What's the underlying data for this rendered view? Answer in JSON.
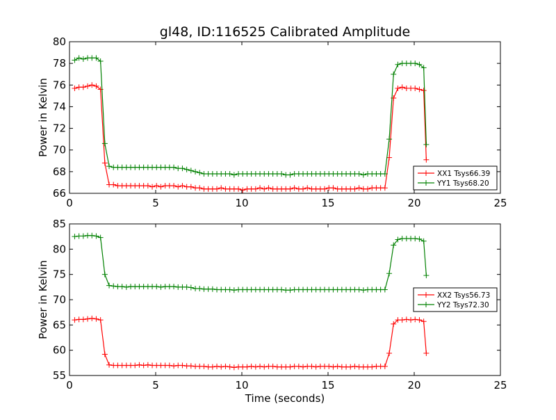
{
  "title": "gl48, ID:116525 Calibrated Amplitude",
  "colors": {
    "xx": "#ff0000",
    "yy": "#008000",
    "axes": "#000000",
    "background": "#ffffff"
  },
  "chart_data": [
    {
      "type": "line",
      "ylabel": "Power in Kelvin",
      "xlabel": "",
      "xlim": [
        0,
        25
      ],
      "ylim": [
        66,
        80
      ],
      "xticks": [
        0,
        5,
        10,
        15,
        20,
        25
      ],
      "yticks": [
        66,
        68,
        70,
        72,
        74,
        76,
        78,
        80
      ],
      "legend_position": "lower-right",
      "grid": false,
      "x": [
        0.3,
        0.55,
        0.8,
        1.05,
        1.3,
        1.55,
        1.8,
        2.05,
        2.3,
        2.55,
        2.8,
        3.05,
        3.3,
        3.55,
        3.8,
        4.05,
        4.3,
        4.55,
        4.8,
        5.05,
        5.3,
        5.55,
        5.8,
        6.05,
        6.3,
        6.55,
        6.8,
        7.05,
        7.3,
        7.55,
        7.8,
        8.05,
        8.3,
        8.55,
        8.8,
        9.05,
        9.3,
        9.55,
        9.8,
        10.05,
        10.3,
        10.55,
        10.8,
        11.05,
        11.3,
        11.55,
        11.8,
        12.05,
        12.3,
        12.55,
        12.8,
        13.05,
        13.3,
        13.55,
        13.8,
        14.05,
        14.3,
        14.55,
        14.8,
        15.05,
        15.3,
        15.55,
        15.8,
        16.05,
        16.3,
        16.55,
        16.8,
        17.05,
        17.3,
        17.55,
        17.8,
        18.05,
        18.3,
        18.55,
        18.8,
        19.05,
        19.3,
        19.55,
        19.8,
        20.05,
        20.3,
        20.55,
        20.7
      ],
      "series": [
        {
          "name": "XX1 Tsys66.39",
          "color": "#ff0000",
          "values": [
            75.7,
            75.8,
            75.8,
            75.9,
            76.0,
            75.9,
            75.6,
            68.8,
            66.8,
            66.8,
            66.7,
            66.7,
            66.7,
            66.7,
            66.7,
            66.7,
            66.7,
            66.7,
            66.6,
            66.7,
            66.6,
            66.7,
            66.7,
            66.7,
            66.6,
            66.7,
            66.6,
            66.6,
            66.5,
            66.5,
            66.4,
            66.4,
            66.4,
            66.4,
            66.5,
            66.4,
            66.4,
            66.4,
            66.4,
            66.3,
            66.4,
            66.4,
            66.4,
            66.5,
            66.4,
            66.5,
            66.4,
            66.4,
            66.4,
            66.4,
            66.4,
            66.5,
            66.4,
            66.4,
            66.5,
            66.4,
            66.4,
            66.4,
            66.4,
            66.5,
            66.5,
            66.4,
            66.4,
            66.4,
            66.4,
            66.4,
            66.5,
            66.4,
            66.4,
            66.5,
            66.5,
            66.5,
            66.5,
            69.3,
            74.8,
            75.7,
            75.8,
            75.7,
            75.7,
            75.7,
            75.6,
            75.5,
            69.1
          ]
        },
        {
          "name": "YY1 Tsys68.20",
          "color": "#008000",
          "values": [
            78.3,
            78.5,
            78.4,
            78.5,
            78.5,
            78.5,
            78.2,
            70.6,
            68.5,
            68.4,
            68.4,
            68.4,
            68.4,
            68.4,
            68.4,
            68.4,
            68.4,
            68.4,
            68.4,
            68.4,
            68.4,
            68.4,
            68.4,
            68.4,
            68.3,
            68.3,
            68.2,
            68.1,
            68.0,
            67.9,
            67.8,
            67.8,
            67.8,
            67.8,
            67.8,
            67.8,
            67.8,
            67.7,
            67.8,
            67.8,
            67.8,
            67.8,
            67.8,
            67.8,
            67.8,
            67.8,
            67.8,
            67.8,
            67.8,
            67.7,
            67.7,
            67.8,
            67.8,
            67.8,
            67.8,
            67.8,
            67.8,
            67.8,
            67.8,
            67.8,
            67.8,
            67.8,
            67.8,
            67.8,
            67.8,
            67.8,
            67.8,
            67.7,
            67.8,
            67.8,
            67.8,
            67.8,
            67.8,
            71.0,
            77.0,
            77.9,
            78.0,
            78.0,
            78.0,
            78.0,
            77.9,
            77.6,
            70.5
          ]
        }
      ]
    },
    {
      "type": "line",
      "ylabel": "Power in Kelvin",
      "xlabel": "Time (seconds)",
      "xlim": [
        0,
        25
      ],
      "ylim": [
        55,
        85
      ],
      "xticks": [
        0,
        5,
        10,
        15,
        20,
        25
      ],
      "yticks": [
        55,
        60,
        65,
        70,
        75,
        80,
        85
      ],
      "legend_position": "right",
      "grid": false,
      "x": [
        0.3,
        0.55,
        0.8,
        1.05,
        1.3,
        1.55,
        1.8,
        2.05,
        2.3,
        2.55,
        2.8,
        3.05,
        3.3,
        3.55,
        3.8,
        4.05,
        4.3,
        4.55,
        4.8,
        5.05,
        5.3,
        5.55,
        5.8,
        6.05,
        6.3,
        6.55,
        6.8,
        7.05,
        7.3,
        7.55,
        7.8,
        8.05,
        8.3,
        8.55,
        8.8,
        9.05,
        9.3,
        9.55,
        9.8,
        10.05,
        10.3,
        10.55,
        10.8,
        11.05,
        11.3,
        11.55,
        11.8,
        12.05,
        12.3,
        12.55,
        12.8,
        13.05,
        13.3,
        13.55,
        13.8,
        14.05,
        14.3,
        14.55,
        14.8,
        15.05,
        15.3,
        15.55,
        15.8,
        16.05,
        16.3,
        16.55,
        16.8,
        17.05,
        17.3,
        17.55,
        17.8,
        18.05,
        18.3,
        18.55,
        18.8,
        19.05,
        19.3,
        19.55,
        19.8,
        20.05,
        20.3,
        20.55,
        20.7
      ],
      "series": [
        {
          "name": "XX2 Tsys56.73",
          "color": "#ff0000",
          "values": [
            66.0,
            66.1,
            66.1,
            66.2,
            66.3,
            66.2,
            66.0,
            59.2,
            57.1,
            57.0,
            57.0,
            57.0,
            57.0,
            57.0,
            57.0,
            57.1,
            57.0,
            57.1,
            57.0,
            57.0,
            57.0,
            57.0,
            57.0,
            56.9,
            57.0,
            57.0,
            56.9,
            56.9,
            56.8,
            56.8,
            56.8,
            56.7,
            56.7,
            56.8,
            56.7,
            56.8,
            56.7,
            56.6,
            56.7,
            56.7,
            56.7,
            56.8,
            56.7,
            56.8,
            56.7,
            56.8,
            56.8,
            56.7,
            56.7,
            56.7,
            56.7,
            56.8,
            56.8,
            56.7,
            56.8,
            56.8,
            56.7,
            56.8,
            56.8,
            56.8,
            56.7,
            56.8,
            56.7,
            56.7,
            56.7,
            56.8,
            56.7,
            56.7,
            56.7,
            56.7,
            56.8,
            56.8,
            56.8,
            59.4,
            65.2,
            66.0,
            66.0,
            66.1,
            66.0,
            66.1,
            66.0,
            65.7,
            59.4
          ]
        },
        {
          "name": "YY2 Tsys72.30",
          "color": "#008000",
          "values": [
            82.5,
            82.6,
            82.6,
            82.7,
            82.7,
            82.6,
            82.3,
            75.0,
            72.8,
            72.7,
            72.6,
            72.6,
            72.5,
            72.6,
            72.6,
            72.6,
            72.6,
            72.6,
            72.6,
            72.6,
            72.5,
            72.6,
            72.6,
            72.6,
            72.5,
            72.5,
            72.5,
            72.4,
            72.2,
            72.2,
            72.1,
            72.1,
            72.1,
            72.0,
            72.0,
            72.0,
            72.0,
            71.9,
            72.0,
            72.0,
            72.0,
            72.0,
            72.0,
            72.0,
            72.0,
            72.0,
            72.0,
            72.0,
            72.0,
            71.9,
            71.9,
            72.0,
            72.0,
            72.0,
            72.0,
            72.0,
            72.0,
            72.0,
            72.0,
            72.0,
            72.0,
            72.0,
            72.0,
            72.0,
            72.0,
            72.0,
            72.0,
            71.9,
            72.0,
            72.0,
            72.0,
            72.0,
            72.0,
            75.2,
            80.8,
            81.9,
            82.1,
            82.1,
            82.1,
            82.1,
            82.0,
            81.6,
            74.8
          ]
        }
      ]
    }
  ]
}
